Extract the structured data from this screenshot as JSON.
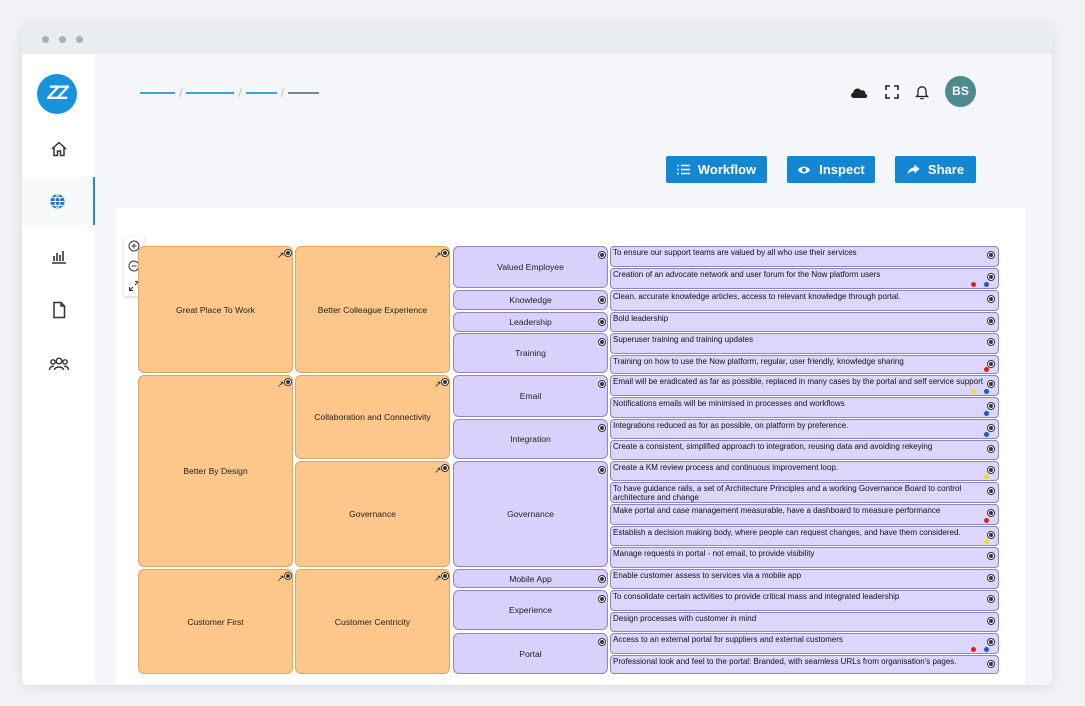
{
  "header": {
    "user_initials": "BS"
  },
  "toolbar": {
    "workflow_label": "Workflow",
    "inspect_label": "Inspect",
    "share_label": "Share"
  },
  "logo_text": "ZZ",
  "colors": {
    "accent": "#1386d4",
    "goal": "#fdc78c",
    "objective": "#d9d1fb",
    "red": "#e21b1b",
    "blue": "#1f55d6",
    "yellow": "#f2dc2a"
  },
  "goals": [
    {
      "label": "Great Place To Work"
    },
    {
      "label": "Better By Design"
    },
    {
      "label": "Customer First"
    }
  ],
  "strategies": [
    {
      "label": "Better Colleague Experience"
    },
    {
      "label": "Collaboration and Connectivity"
    },
    {
      "label": "Governance"
    },
    {
      "label": "Customer Centricity"
    }
  ],
  "objectives": [
    {
      "label": "Valued Employee"
    },
    {
      "label": "Knowledge"
    },
    {
      "label": "Leadership"
    },
    {
      "label": "Training"
    },
    {
      "label": "Email"
    },
    {
      "label": "Integration"
    },
    {
      "label": "Governance"
    },
    {
      "label": "Mobile App"
    },
    {
      "label": "Experience"
    },
    {
      "label": "Portal"
    }
  ],
  "targets": [
    {
      "text": "To ensure our support teams are valued by all who use their services"
    },
    {
      "text": "Creation of an advocate network and user forum for the Now platform users"
    },
    {
      "text": "Clean, accurate knowledge articles, access to relevant knowledge through portal."
    },
    {
      "text": "Bold leadership"
    },
    {
      "text": "Superuser training and training updates"
    },
    {
      "text": "Training on how to use the Now platform, regular, user friendly, knowledge sharing"
    },
    {
      "text": "Email will be eradicated as far as possible, replaced in many cases by the portal and self service support"
    },
    {
      "text": "Notifications emails will be minimised in processes and workflows"
    },
    {
      "text": "Integrations reduced as for as possible, on platform by preference."
    },
    {
      "text": "Create a consistent, simplified approach to integration, reusing data and avoiding rekeying"
    },
    {
      "text": "Create a KM review process and continuous improvement loop."
    },
    {
      "text": "To have guidance rails, a set of Architecture Principles and a working Governance Board to control architecture and change"
    },
    {
      "text": "Make portal and case management measurable, have a dashboard to measure performance"
    },
    {
      "text": "Establish a decision making body, where people can request changes, and have them considered."
    },
    {
      "text": "Manage requests in portal - not email, to provide visibility"
    },
    {
      "text": "Enable customer assess to services via a mobile app"
    },
    {
      "text": "To consolidate certain activities to provide critical mass and integrated leadership"
    },
    {
      "text": "Design processes with customer in mind"
    },
    {
      "text": "Access to an external portal for suppliers and external customers"
    },
    {
      "text": "Professional look and feel to the portal: Branded, with seamless URLs from organisation's pages."
    }
  ]
}
